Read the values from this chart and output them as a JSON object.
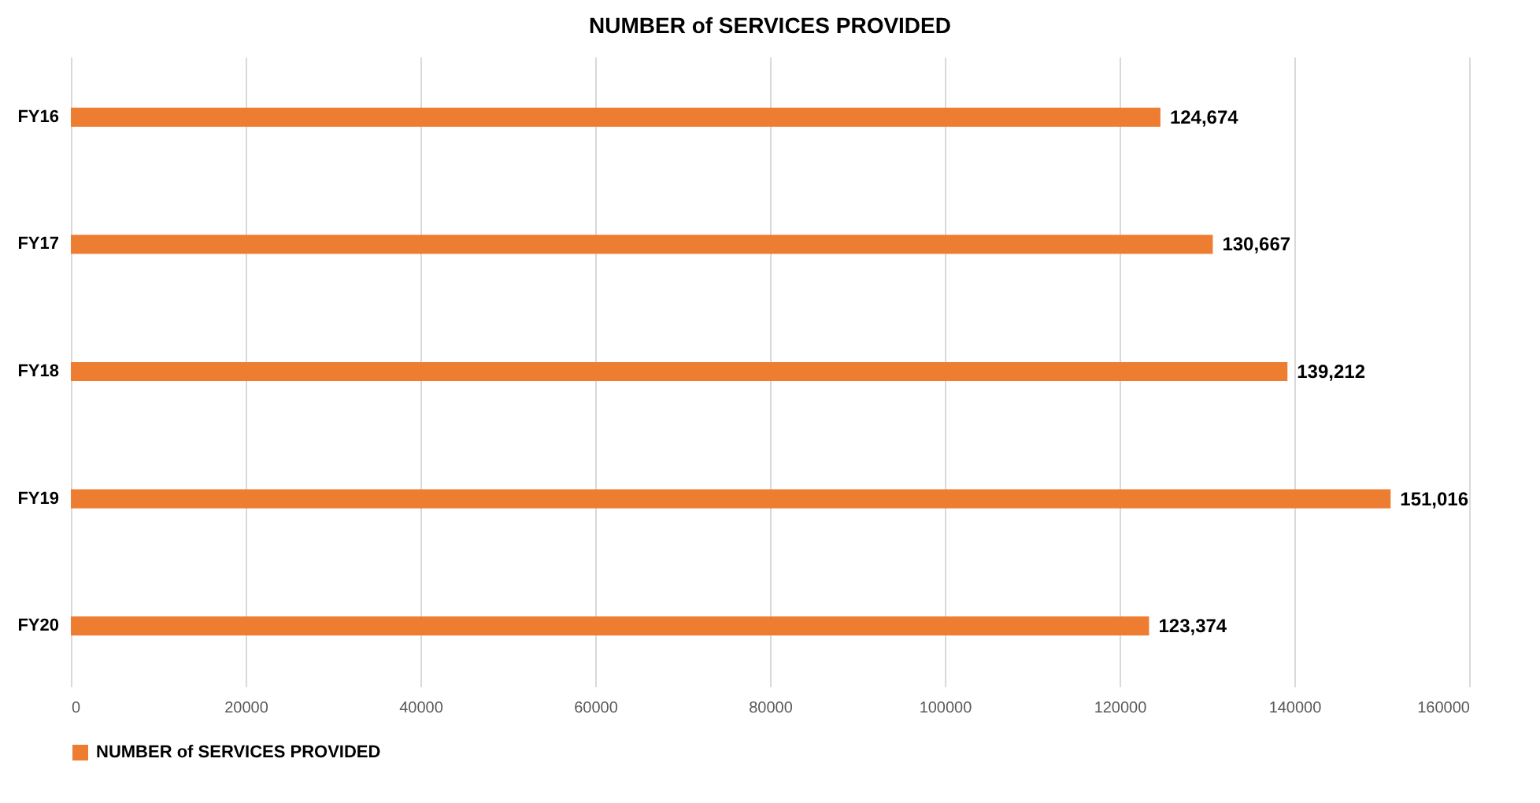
{
  "chart_data": {
    "type": "bar",
    "orientation": "horizontal",
    "title": "NUMBER of SERVICES PROVIDED",
    "categories": [
      "FY16",
      "FY17",
      "FY18",
      "FY19",
      "FY20"
    ],
    "series": [
      {
        "name": "NUMBER of SERVICES PROVIDED",
        "color": "#ed7d31",
        "values": [
          124674,
          130667,
          139212,
          151016,
          123374
        ],
        "value_labels": [
          "124,674",
          "130,667",
          "139,212",
          "151,016",
          "123,374"
        ]
      }
    ],
    "xlim": [
      0,
      160000
    ],
    "xticks": [
      0,
      20000,
      40000,
      60000,
      80000,
      100000,
      120000,
      140000,
      160000
    ],
    "grid": "x",
    "legend": "bottom"
  }
}
